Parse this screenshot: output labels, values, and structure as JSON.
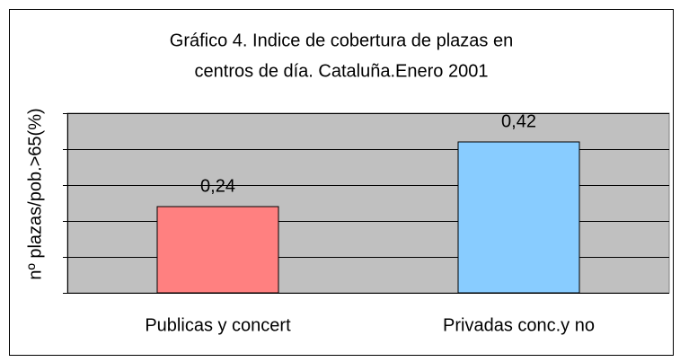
{
  "chart_data": {
    "type": "bar",
    "title": [
      "Gráfico 4. Indice de cobertura de plazas en",
      "centros de día. Cataluña.Enero 2001"
    ],
    "y_label": "nº plazas/pob.>65(%)",
    "categories": [
      "Publicas y concert",
      "Privadas conc.y no"
    ],
    "values": [
      0.24,
      0.42
    ],
    "value_labels": [
      "0,24",
      "0,42"
    ],
    "colors": [
      "#ff8080",
      "#88ccff"
    ],
    "ylim": [
      0,
      0.5
    ],
    "yticks": [
      0,
      0.1,
      0.2,
      0.3,
      0.4,
      0.5
    ],
    "grid": true,
    "plot_background": "#c0c0c0"
  }
}
